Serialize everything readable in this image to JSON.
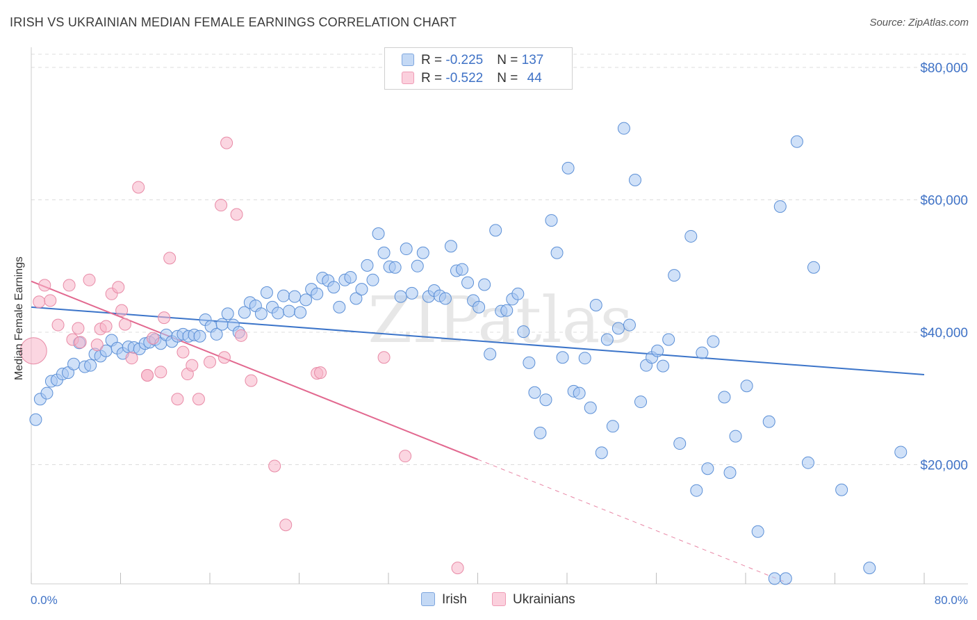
{
  "title": "IRISH VS UKRAINIAN MEDIAN FEMALE EARNINGS CORRELATION CHART",
  "source": "Source: ZipAtlas.com",
  "watermark": "ZIPatlas",
  "legend": {
    "rows": [
      {
        "r_label": "R = ",
        "r_value": "-0.225",
        "n_label": "N = ",
        "n_value": "137",
        "color": "#a9c8f2"
      },
      {
        "r_label": "R = ",
        "r_value": "-0.522",
        "n_label": "N = ",
        "n_value": "44",
        "color": "#f7b5c9"
      }
    ]
  },
  "bottom_legend": [
    "Irish",
    "Ukrainians"
  ],
  "chart_data": {
    "type": "scatter",
    "title": "IRISH VS UKRAINIAN MEDIAN FEMALE EARNINGS CORRELATION CHART",
    "xlabel": "",
    "ylabel": "Median Female Earnings",
    "xlim": [
      0,
      80
    ],
    "ylim": [
      2000,
      82000
    ],
    "x_tick_labels": [
      "0.0%",
      "80.0%"
    ],
    "y_ticks": [
      20000,
      40000,
      60000,
      80000
    ],
    "y_tick_labels": [
      "$20,000",
      "$40,000",
      "$60,000",
      "$80,000"
    ],
    "grid": "horizontal dashed",
    "legend_placement": "top-center",
    "series": [
      {
        "name": "Irish",
        "color": "#a9c8f2",
        "stroke": "#5b8fd6",
        "trend": {
          "x": [
            0,
            80
          ],
          "y": [
            43800,
            33600
          ],
          "color": "#3b74c9"
        },
        "points": [
          [
            0.4,
            26800
          ],
          [
            0.8,
            29900
          ],
          [
            1.4,
            30800
          ],
          [
            1.8,
            32600
          ],
          [
            2.3,
            32800
          ],
          [
            2.8,
            33700
          ],
          [
            3.3,
            33900
          ],
          [
            3.8,
            35200
          ],
          [
            4.3,
            38400
          ],
          [
            4.8,
            34800
          ],
          [
            5.3,
            35000
          ],
          [
            5.7,
            36700
          ],
          [
            6.2,
            36400
          ],
          [
            6.7,
            37200
          ],
          [
            7.2,
            38800
          ],
          [
            7.7,
            37600
          ],
          [
            8.2,
            36800
          ],
          [
            8.7,
            37800
          ],
          [
            9.2,
            37700
          ],
          [
            9.7,
            37500
          ],
          [
            10.2,
            38300
          ],
          [
            10.6,
            38500
          ],
          [
            11.1,
            38900
          ],
          [
            11.6,
            38300
          ],
          [
            12.1,
            39600
          ],
          [
            12.6,
            38600
          ],
          [
            13.1,
            39400
          ],
          [
            13.6,
            39700
          ],
          [
            14.1,
            39400
          ],
          [
            14.6,
            39600
          ],
          [
            15.1,
            39400
          ],
          [
            15.6,
            41900
          ],
          [
            16.1,
            40900
          ],
          [
            16.6,
            39700
          ],
          [
            17.1,
            41200
          ],
          [
            17.6,
            42800
          ],
          [
            18.1,
            41100
          ],
          [
            18.6,
            40000
          ],
          [
            19.1,
            43000
          ],
          [
            19.6,
            44500
          ],
          [
            20.1,
            44000
          ],
          [
            20.6,
            42800
          ],
          [
            21.1,
            46000
          ],
          [
            21.6,
            43800
          ],
          [
            22.1,
            42900
          ],
          [
            22.6,
            45500
          ],
          [
            23.1,
            43200
          ],
          [
            23.6,
            45400
          ],
          [
            24.1,
            43000
          ],
          [
            24.6,
            44900
          ],
          [
            25.1,
            46500
          ],
          [
            25.6,
            45800
          ],
          [
            26.1,
            48200
          ],
          [
            26.6,
            47800
          ],
          [
            27.1,
            46800
          ],
          [
            27.6,
            43800
          ],
          [
            28.1,
            47900
          ],
          [
            28.6,
            48300
          ],
          [
            29.1,
            45100
          ],
          [
            29.6,
            46500
          ],
          [
            30.1,
            50100
          ],
          [
            30.6,
            47900
          ],
          [
            31.1,
            54900
          ],
          [
            31.6,
            52000
          ],
          [
            32.1,
            49900
          ],
          [
            32.6,
            49800
          ],
          [
            33.1,
            45400
          ],
          [
            33.6,
            52600
          ],
          [
            34.1,
            45900
          ],
          [
            34.6,
            50000
          ],
          [
            35.1,
            52000
          ],
          [
            35.6,
            45400
          ],
          [
            36.1,
            46300
          ],
          [
            36.6,
            45500
          ],
          [
            37.1,
            45100
          ],
          [
            37.6,
            53000
          ],
          [
            38.1,
            49300
          ],
          [
            38.6,
            49500
          ],
          [
            39.1,
            47500
          ],
          [
            39.6,
            44800
          ],
          [
            40.1,
            43800
          ],
          [
            40.6,
            47200
          ],
          [
            41.1,
            36700
          ],
          [
            41.6,
            55400
          ],
          [
            42.1,
            43200
          ],
          [
            42.6,
            43300
          ],
          [
            43.1,
            45000
          ],
          [
            43.6,
            45800
          ],
          [
            44.1,
            40100
          ],
          [
            44.6,
            35400
          ],
          [
            45.1,
            30900
          ],
          [
            45.6,
            24800
          ],
          [
            46.1,
            29800
          ],
          [
            46.6,
            56900
          ],
          [
            47.1,
            52000
          ],
          [
            47.6,
            36200
          ],
          [
            48.1,
            64800
          ],
          [
            48.6,
            31100
          ],
          [
            49.1,
            30800
          ],
          [
            49.6,
            36100
          ],
          [
            50.1,
            28600
          ],
          [
            50.6,
            44100
          ],
          [
            51.1,
            21800
          ],
          [
            51.6,
            38900
          ],
          [
            52.1,
            25800
          ],
          [
            52.6,
            40600
          ],
          [
            53.1,
            70800
          ],
          [
            53.6,
            41100
          ],
          [
            54.1,
            63000
          ],
          [
            54.6,
            29500
          ],
          [
            55.1,
            35000
          ],
          [
            55.6,
            36200
          ],
          [
            56.1,
            37200
          ],
          [
            56.6,
            34900
          ],
          [
            57.1,
            38900
          ],
          [
            57.6,
            48600
          ],
          [
            58.1,
            23200
          ],
          [
            59.1,
            54500
          ],
          [
            59.6,
            16100
          ],
          [
            60.1,
            36900
          ],
          [
            60.6,
            19400
          ],
          [
            61.1,
            38600
          ],
          [
            62.1,
            30200
          ],
          [
            62.6,
            18800
          ],
          [
            63.1,
            24300
          ],
          [
            64.1,
            31900
          ],
          [
            65.1,
            9900
          ],
          [
            66.1,
            26500
          ],
          [
            66.6,
            2800
          ],
          [
            67.1,
            59000
          ],
          [
            67.6,
            2800
          ],
          [
            68.6,
            68800
          ],
          [
            69.6,
            20300
          ],
          [
            70.1,
            49800
          ],
          [
            72.6,
            16200
          ],
          [
            75.1,
            4400
          ],
          [
            77.9,
            21900
          ]
        ]
      },
      {
        "name": "Ukrainians",
        "color": "#f7b5c9",
        "stroke": "#e88aa6",
        "trend": {
          "x": [
            0,
            40
          ],
          "y": [
            47700,
            20800
          ],
          "dashed_to_x": 80,
          "dashed_to_y": -6000,
          "color": "#e2688f"
        },
        "points": [
          [
            0.2,
            37200
          ],
          [
            0.7,
            44600
          ],
          [
            1.2,
            47100
          ],
          [
            1.7,
            44800
          ],
          [
            2.4,
            41100
          ],
          [
            3.4,
            47100
          ],
          [
            3.7,
            38900
          ],
          [
            4.2,
            40600
          ],
          [
            4.4,
            38500
          ],
          [
            5.2,
            47900
          ],
          [
            5.9,
            38100
          ],
          [
            6.2,
            40500
          ],
          [
            6.7,
            40900
          ],
          [
            7.2,
            45800
          ],
          [
            7.8,
            46800
          ],
          [
            8.1,
            43300
          ],
          [
            8.4,
            41200
          ],
          [
            9.0,
            36100
          ],
          [
            9.6,
            61900
          ],
          [
            10.4,
            33500
          ],
          [
            10.9,
            39100
          ],
          [
            11.6,
            34000
          ],
          [
            11.9,
            42200
          ],
          [
            12.4,
            51200
          ],
          [
            13.1,
            29900
          ],
          [
            13.6,
            37000
          ],
          [
            14.0,
            33700
          ],
          [
            14.4,
            35000
          ],
          [
            15.0,
            29900
          ],
          [
            16.0,
            35500
          ],
          [
            17.0,
            59200
          ],
          [
            17.3,
            36200
          ],
          [
            17.5,
            68600
          ],
          [
            18.4,
            57800
          ],
          [
            18.8,
            39500
          ],
          [
            19.7,
            32700
          ],
          [
            21.8,
            19800
          ],
          [
            22.8,
            10900
          ],
          [
            25.6,
            33800
          ],
          [
            25.9,
            33900
          ],
          [
            31.6,
            36200
          ],
          [
            33.5,
            21300
          ],
          [
            38.2,
            4400
          ],
          [
            10.4,
            33500
          ]
        ]
      }
    ]
  }
}
